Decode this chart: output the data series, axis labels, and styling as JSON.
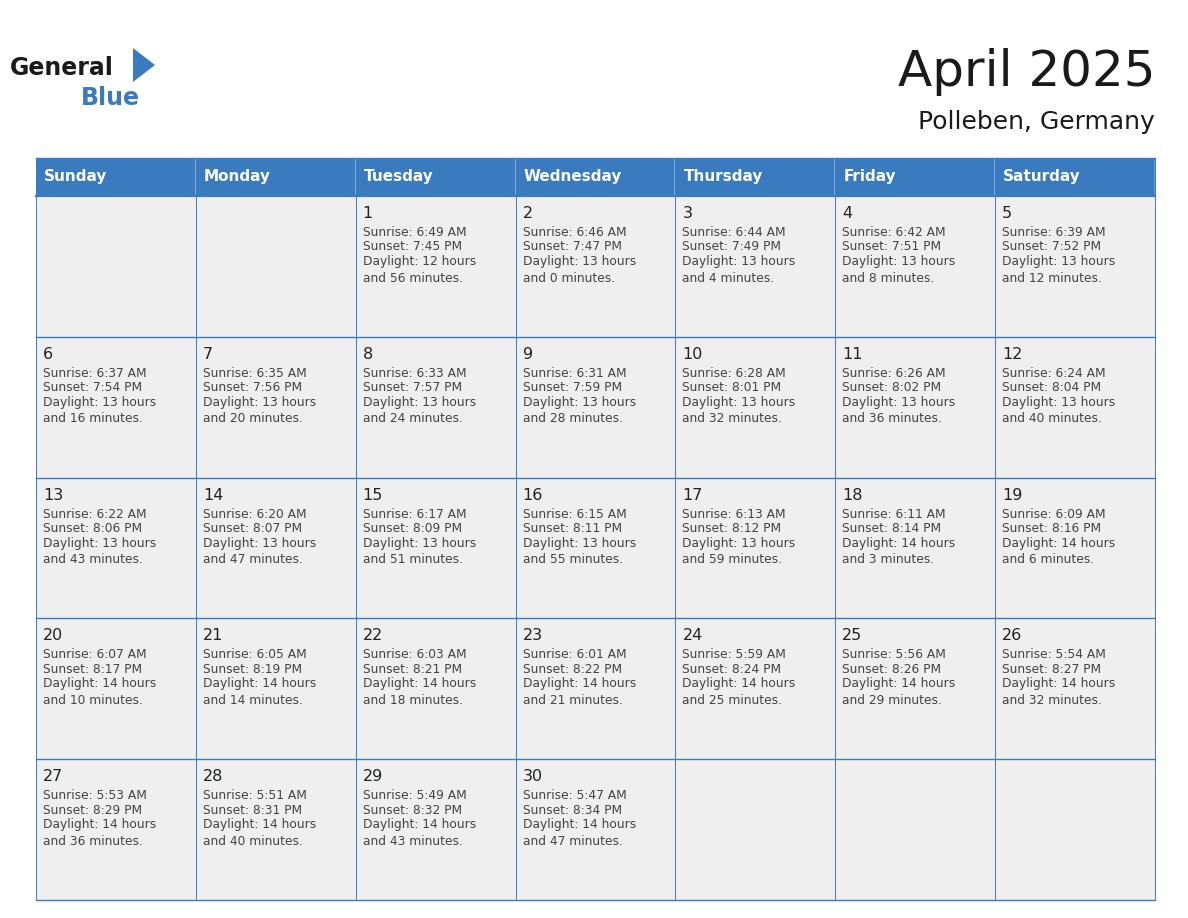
{
  "title": "April 2025",
  "subtitle": "Polleben, Germany",
  "header_bg_color": "#3a7bbf",
  "header_text_color": "#ffffff",
  "cell_bg_color": "#efefef",
  "cell_text_color": "#444444",
  "day_number_color": "#222222",
  "grid_line_color": "#3a7bbf",
  "days_of_week": [
    "Sunday",
    "Monday",
    "Tuesday",
    "Wednesday",
    "Thursday",
    "Friday",
    "Saturday"
  ],
  "weeks": [
    [
      {
        "day": null,
        "sunrise": null,
        "sunset": null,
        "daylight": ""
      },
      {
        "day": null,
        "sunrise": null,
        "sunset": null,
        "daylight": ""
      },
      {
        "day": 1,
        "sunrise": "6:49 AM",
        "sunset": "7:45 PM",
        "daylight": "Daylight: 12 hours\nand 56 minutes."
      },
      {
        "day": 2,
        "sunrise": "6:46 AM",
        "sunset": "7:47 PM",
        "daylight": "Daylight: 13 hours\nand 0 minutes."
      },
      {
        "day": 3,
        "sunrise": "6:44 AM",
        "sunset": "7:49 PM",
        "daylight": "Daylight: 13 hours\nand 4 minutes."
      },
      {
        "day": 4,
        "sunrise": "6:42 AM",
        "sunset": "7:51 PM",
        "daylight": "Daylight: 13 hours\nand 8 minutes."
      },
      {
        "day": 5,
        "sunrise": "6:39 AM",
        "sunset": "7:52 PM",
        "daylight": "Daylight: 13 hours\nand 12 minutes."
      }
    ],
    [
      {
        "day": 6,
        "sunrise": "6:37 AM",
        "sunset": "7:54 PM",
        "daylight": "Daylight: 13 hours\nand 16 minutes."
      },
      {
        "day": 7,
        "sunrise": "6:35 AM",
        "sunset": "7:56 PM",
        "daylight": "Daylight: 13 hours\nand 20 minutes."
      },
      {
        "day": 8,
        "sunrise": "6:33 AM",
        "sunset": "7:57 PM",
        "daylight": "Daylight: 13 hours\nand 24 minutes."
      },
      {
        "day": 9,
        "sunrise": "6:31 AM",
        "sunset": "7:59 PM",
        "daylight": "Daylight: 13 hours\nand 28 minutes."
      },
      {
        "day": 10,
        "sunrise": "6:28 AM",
        "sunset": "8:01 PM",
        "daylight": "Daylight: 13 hours\nand 32 minutes."
      },
      {
        "day": 11,
        "sunrise": "6:26 AM",
        "sunset": "8:02 PM",
        "daylight": "Daylight: 13 hours\nand 36 minutes."
      },
      {
        "day": 12,
        "sunrise": "6:24 AM",
        "sunset": "8:04 PM",
        "daylight": "Daylight: 13 hours\nand 40 minutes."
      }
    ],
    [
      {
        "day": 13,
        "sunrise": "6:22 AM",
        "sunset": "8:06 PM",
        "daylight": "Daylight: 13 hours\nand 43 minutes."
      },
      {
        "day": 14,
        "sunrise": "6:20 AM",
        "sunset": "8:07 PM",
        "daylight": "Daylight: 13 hours\nand 47 minutes."
      },
      {
        "day": 15,
        "sunrise": "6:17 AM",
        "sunset": "8:09 PM",
        "daylight": "Daylight: 13 hours\nand 51 minutes."
      },
      {
        "day": 16,
        "sunrise": "6:15 AM",
        "sunset": "8:11 PM",
        "daylight": "Daylight: 13 hours\nand 55 minutes."
      },
      {
        "day": 17,
        "sunrise": "6:13 AM",
        "sunset": "8:12 PM",
        "daylight": "Daylight: 13 hours\nand 59 minutes."
      },
      {
        "day": 18,
        "sunrise": "6:11 AM",
        "sunset": "8:14 PM",
        "daylight": "Daylight: 14 hours\nand 3 minutes."
      },
      {
        "day": 19,
        "sunrise": "6:09 AM",
        "sunset": "8:16 PM",
        "daylight": "Daylight: 14 hours\nand 6 minutes."
      }
    ],
    [
      {
        "day": 20,
        "sunrise": "6:07 AM",
        "sunset": "8:17 PM",
        "daylight": "Daylight: 14 hours\nand 10 minutes."
      },
      {
        "day": 21,
        "sunrise": "6:05 AM",
        "sunset": "8:19 PM",
        "daylight": "Daylight: 14 hours\nand 14 minutes."
      },
      {
        "day": 22,
        "sunrise": "6:03 AM",
        "sunset": "8:21 PM",
        "daylight": "Daylight: 14 hours\nand 18 minutes."
      },
      {
        "day": 23,
        "sunrise": "6:01 AM",
        "sunset": "8:22 PM",
        "daylight": "Daylight: 14 hours\nand 21 minutes."
      },
      {
        "day": 24,
        "sunrise": "5:59 AM",
        "sunset": "8:24 PM",
        "daylight": "Daylight: 14 hours\nand 25 minutes."
      },
      {
        "day": 25,
        "sunrise": "5:56 AM",
        "sunset": "8:26 PM",
        "daylight": "Daylight: 14 hours\nand 29 minutes."
      },
      {
        "day": 26,
        "sunrise": "5:54 AM",
        "sunset": "8:27 PM",
        "daylight": "Daylight: 14 hours\nand 32 minutes."
      }
    ],
    [
      {
        "day": 27,
        "sunrise": "5:53 AM",
        "sunset": "8:29 PM",
        "daylight": "Daylight: 14 hours\nand 36 minutes."
      },
      {
        "day": 28,
        "sunrise": "5:51 AM",
        "sunset": "8:31 PM",
        "daylight": "Daylight: 14 hours\nand 40 minutes."
      },
      {
        "day": 29,
        "sunrise": "5:49 AM",
        "sunset": "8:32 PM",
        "daylight": "Daylight: 14 hours\nand 43 minutes."
      },
      {
        "day": 30,
        "sunrise": "5:47 AM",
        "sunset": "8:34 PM",
        "daylight": "Daylight: 14 hours\nand 47 minutes."
      },
      {
        "day": null,
        "sunrise": null,
        "sunset": null,
        "daylight": ""
      },
      {
        "day": null,
        "sunrise": null,
        "sunset": null,
        "daylight": ""
      },
      {
        "day": null,
        "sunrise": null,
        "sunset": null,
        "daylight": ""
      }
    ]
  ]
}
